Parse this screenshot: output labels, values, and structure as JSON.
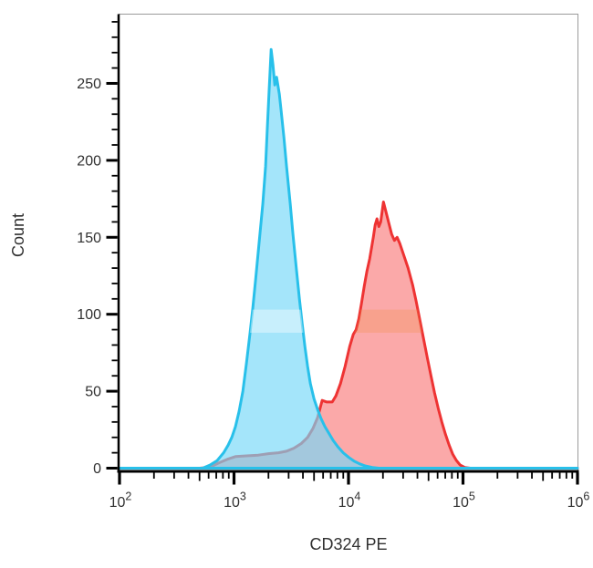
{
  "figure": {
    "background": "#ffffff"
  },
  "chart_data": {
    "type": "area",
    "subtype": "flow-cytometry-histogram-overlay",
    "title": "",
    "xlabel": "CD324 PE",
    "ylabel": "Count",
    "x_scale": "log10",
    "x_range_log10": [
      2,
      6
    ],
    "ylim": [
      0,
      295
    ],
    "y_tick_values": [
      0,
      50,
      100,
      150,
      200,
      250
    ],
    "y_tick_labels": [
      "0",
      "50",
      "100",
      "150",
      "200",
      "250"
    ],
    "y_minor_step": 10,
    "x_major_ticks_log10": [
      2,
      3,
      4,
      5,
      6
    ],
    "x_tick_label_base": "10",
    "x_tick_exponents": [
      "2",
      "3",
      "4",
      "5",
      "6"
    ],
    "grid": false,
    "legend": "none",
    "axis_color": "#000000",
    "frame_color": "#9b9b9b",
    "label_color": "#303030",
    "highlight_band": {
      "count_min": 88,
      "count_max": 103
    },
    "series": [
      {
        "id": "red-peak",
        "stroke": "#ee3333",
        "fill": "#fba9a9",
        "band_overlay": "rgba(242,140,70,0.28)",
        "peak_count": 173,
        "peak_x_log10": 4.305,
        "points": [
          [
            2.0,
            0
          ],
          [
            2.7,
            0
          ],
          [
            2.75,
            0.3
          ],
          [
            2.813,
            1.5
          ],
          [
            2.885,
            4
          ],
          [
            2.949,
            6
          ],
          [
            3.013,
            7.5
          ],
          [
            3.108,
            8
          ],
          [
            3.212,
            8.5
          ],
          [
            3.308,
            9.5
          ],
          [
            3.388,
            10
          ],
          [
            3.459,
            11
          ],
          [
            3.523,
            13
          ],
          [
            3.587,
            16
          ],
          [
            3.643,
            20
          ],
          [
            3.691,
            26
          ],
          [
            3.731,
            33
          ],
          [
            3.77,
            44
          ],
          [
            3.81,
            43
          ],
          [
            3.858,
            43
          ],
          [
            3.89,
            47
          ],
          [
            3.93,
            55
          ],
          [
            3.97,
            66
          ],
          [
            4.01,
            79
          ],
          [
            4.042,
            87
          ],
          [
            4.066,
            90
          ],
          [
            4.09,
            97
          ],
          [
            4.113,
            107
          ],
          [
            4.137,
            118
          ],
          [
            4.161,
            128
          ],
          [
            4.185,
            136
          ],
          [
            4.201,
            143
          ],
          [
            4.217,
            150
          ],
          [
            4.233,
            158
          ],
          [
            4.249,
            162
          ],
          [
            4.265,
            157
          ],
          [
            4.281,
            160
          ],
          [
            4.305,
            173
          ],
          [
            4.329,
            166
          ],
          [
            4.353,
            159
          ],
          [
            4.377,
            152
          ],
          [
            4.401,
            148
          ],
          [
            4.425,
            150
          ],
          [
            4.448,
            146
          ],
          [
            4.48,
            139
          ],
          [
            4.52,
            130
          ],
          [
            4.56,
            119
          ],
          [
            4.592,
            108
          ],
          [
            4.624,
            96
          ],
          [
            4.656,
            84
          ],
          [
            4.688,
            72
          ],
          [
            4.72,
            60
          ],
          [
            4.751,
            49
          ],
          [
            4.783,
            39
          ],
          [
            4.815,
            30
          ],
          [
            4.847,
            22
          ],
          [
            4.879,
            15
          ],
          [
            4.911,
            9
          ],
          [
            4.943,
            5
          ],
          [
            4.975,
            2
          ],
          [
            5.015,
            0.5
          ],
          [
            5.063,
            0
          ],
          [
            6.0,
            0
          ]
        ]
      },
      {
        "id": "blue-peak",
        "stroke": "#28c0ea",
        "fill": "rgba(117,216,247,0.66)",
        "band_overlay": "rgba(255,255,255,0.40)",
        "peak_count": 272,
        "peak_x_log10": 3.324,
        "points": [
          [
            2.0,
            0
          ],
          [
            2.6,
            0
          ],
          [
            2.726,
            0
          ],
          [
            2.79,
            2
          ],
          [
            2.853,
            5
          ],
          [
            2.909,
            10
          ],
          [
            2.949,
            15
          ],
          [
            2.981,
            20
          ],
          [
            3.013,
            27
          ],
          [
            3.045,
            37
          ],
          [
            3.077,
            50
          ],
          [
            3.108,
            68
          ],
          [
            3.14,
            88
          ],
          [
            3.164,
            104
          ],
          [
            3.188,
            122
          ],
          [
            3.22,
            147
          ],
          [
            3.252,
            172
          ],
          [
            3.276,
            196
          ],
          [
            3.292,
            222
          ],
          [
            3.308,
            248
          ],
          [
            3.316,
            260
          ],
          [
            3.324,
            272
          ],
          [
            3.34,
            262
          ],
          [
            3.356,
            249
          ],
          [
            3.372,
            254
          ],
          [
            3.396,
            243
          ],
          [
            3.412,
            232
          ],
          [
            3.436,
            215
          ],
          [
            3.459,
            196
          ],
          [
            3.491,
            172
          ],
          [
            3.515,
            152
          ],
          [
            3.547,
            128
          ],
          [
            3.571,
            110
          ],
          [
            3.595,
            94
          ],
          [
            3.619,
            79
          ],
          [
            3.643,
            66
          ],
          [
            3.667,
            55
          ],
          [
            3.699,
            45
          ],
          [
            3.731,
            38
          ],
          [
            3.762,
            32
          ],
          [
            3.794,
            27
          ],
          [
            3.826,
            23
          ],
          [
            3.866,
            18
          ],
          [
            3.906,
            14
          ],
          [
            3.954,
            10
          ],
          [
            4.002,
            7
          ],
          [
            4.05,
            4.5
          ],
          [
            4.098,
            2.8
          ],
          [
            4.145,
            1.5
          ],
          [
            4.209,
            0.5
          ],
          [
            4.265,
            0
          ],
          [
            6.0,
            0
          ]
        ]
      }
    ]
  }
}
